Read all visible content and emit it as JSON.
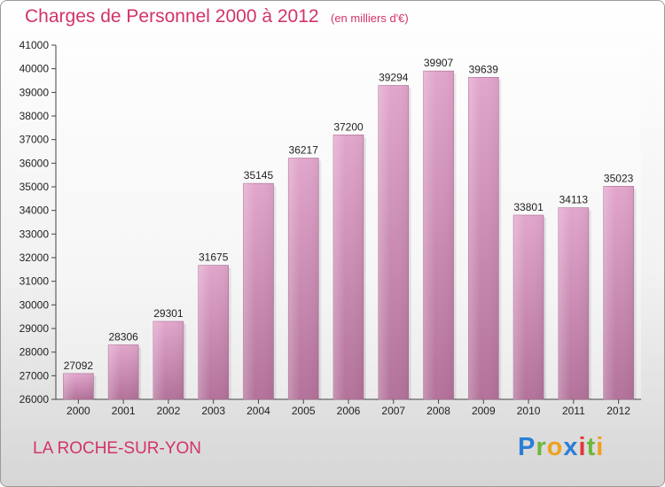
{
  "header": {
    "title": "Charges de Personnel 2000 à 2012",
    "subtitle": "(en milliers d'€)"
  },
  "footer": {
    "city": "LA ROCHE-SUR-YON",
    "brand": [
      "P",
      "r",
      "o",
      "x",
      "i",
      "t",
      "i"
    ]
  },
  "colors": {
    "title": "#d2336a",
    "bar_top": "#e2a6cc",
    "bar_bottom": "#b3729a"
  },
  "chart_data": {
    "type": "bar",
    "title": "Charges de Personnel 2000 à 2012",
    "subtitle": "(en milliers d'€)",
    "xlabel": "",
    "ylabel": "",
    "categories": [
      "2000",
      "2001",
      "2002",
      "2003",
      "2004",
      "2005",
      "2006",
      "2007",
      "2008",
      "2009",
      "2010",
      "2011",
      "2012"
    ],
    "values": [
      27092,
      28306,
      29301,
      31675,
      35145,
      36217,
      37200,
      39294,
      39907,
      39639,
      33801,
      34113,
      35023
    ],
    "ylim": [
      26000,
      41000
    ],
    "yticks": [
      26000,
      27000,
      28000,
      29000,
      30000,
      31000,
      32000,
      33000,
      34000,
      35000,
      36000,
      37000,
      38000,
      39000,
      40000,
      41000
    ],
    "grid": false,
    "legend": "none"
  }
}
